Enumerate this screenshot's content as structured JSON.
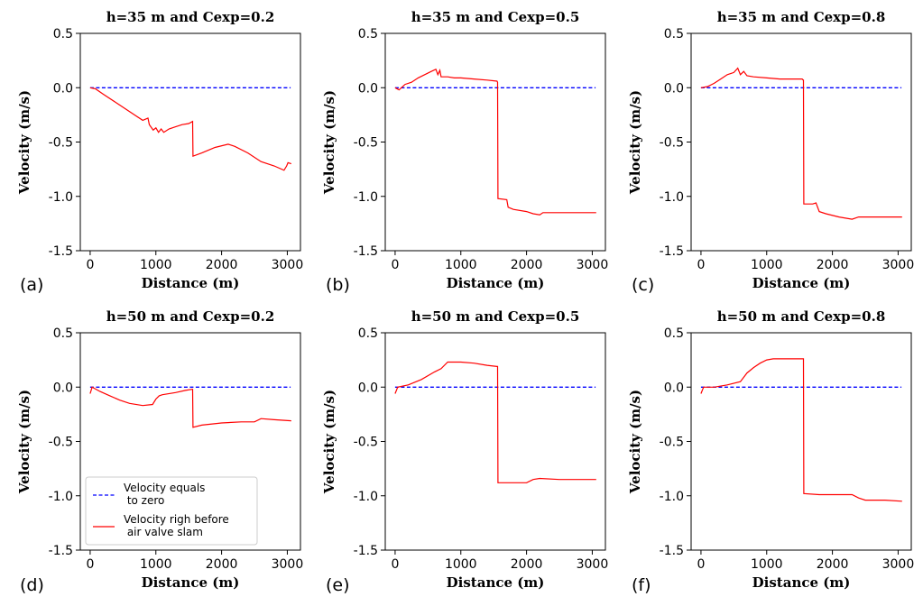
{
  "chart_data": [
    {
      "panel_label": "(a)",
      "type": "line",
      "title": "h=35 m and Cexp=0.2",
      "xlabel": "Distance (m)",
      "ylabel": "Velocity (m/s)",
      "xlim": [
        -150,
        3200
      ],
      "ylim": [
        -1.5,
        0.5
      ],
      "xticks": [
        "0",
        "1000",
        "2000",
        "3000"
      ],
      "yticks": [
        "0.5",
        "0.0",
        "-0.5",
        "-1.0",
        "-1.5"
      ],
      "series": [
        {
          "color": "#0000ff",
          "style": "dashed",
          "x": [
            0,
            3050
          ],
          "y": [
            0,
            0
          ]
        },
        {
          "color": "#ff0000",
          "style": "solid",
          "x": [
            0,
            80,
            200,
            400,
            600,
            800,
            880,
            900,
            960,
            1000,
            1040,
            1080,
            1120,
            1200,
            1300,
            1400,
            1500,
            1560,
            1565,
            1700,
            1900,
            2100,
            2200,
            2400,
            2600,
            2800,
            2950,
            2990,
            3010,
            3060
          ],
          "y": [
            0,
            -0.01,
            -0.06,
            -0.14,
            -0.22,
            -0.3,
            -0.28,
            -0.34,
            -0.39,
            -0.37,
            -0.41,
            -0.38,
            -0.41,
            -0.38,
            -0.36,
            -0.34,
            -0.33,
            -0.31,
            -0.63,
            -0.6,
            -0.55,
            -0.52,
            -0.54,
            -0.6,
            -0.68,
            -0.72,
            -0.76,
            -0.72,
            -0.69,
            -0.7
          ]
        }
      ]
    },
    {
      "panel_label": "(b)",
      "type": "line",
      "title": "h=35 m and Cexp=0.5",
      "xlabel": "Distance (m)",
      "ylabel": "Velocity (m/s)",
      "xlim": [
        -150,
        3200
      ],
      "ylim": [
        -1.5,
        0.5
      ],
      "xticks": [
        "0",
        "1000",
        "2000",
        "3000"
      ],
      "yticks": [
        "0.5",
        "0.0",
        "-0.5",
        "-1.0",
        "-1.5"
      ],
      "series": [
        {
          "color": "#0000ff",
          "style": "dashed",
          "x": [
            0,
            3050
          ],
          "y": [
            0,
            0
          ]
        },
        {
          "color": "#ff0000",
          "style": "solid",
          "x": [
            0,
            60,
            150,
            250,
            350,
            450,
            550,
            620,
            650,
            680,
            700,
            800,
            900,
            1000,
            1200,
            1400,
            1550,
            1560,
            1565,
            1700,
            1720,
            1800,
            2000,
            2100,
            2200,
            2250,
            2400,
            2600,
            2800,
            3000,
            3060
          ],
          "y": [
            0,
            -0.02,
            0.03,
            0.05,
            0.09,
            0.12,
            0.15,
            0.17,
            0.12,
            0.16,
            0.1,
            0.1,
            0.09,
            0.09,
            0.08,
            0.07,
            0.06,
            0.05,
            -1.02,
            -1.03,
            -1.1,
            -1.12,
            -1.14,
            -1.16,
            -1.17,
            -1.15,
            -1.15,
            -1.15,
            -1.15,
            -1.15,
            -1.15
          ]
        }
      ]
    },
    {
      "panel_label": "(c)",
      "type": "line",
      "title": "h=35 m and Cexp=0.8",
      "xlabel": "Distance (m)",
      "ylabel": "Velocity (m/s)",
      "xlim": [
        -150,
        3200
      ],
      "ylim": [
        -1.5,
        0.5
      ],
      "xticks": [
        "0",
        "1000",
        "2000",
        "3000"
      ],
      "yticks": [
        "0.5",
        "0.0",
        "-0.5",
        "-1.0",
        "-1.5"
      ],
      "series": [
        {
          "color": "#0000ff",
          "style": "dashed",
          "x": [
            0,
            3050
          ],
          "y": [
            0,
            0
          ]
        },
        {
          "color": "#ff0000",
          "style": "solid",
          "x": [
            0,
            100,
            200,
            300,
            400,
            500,
            560,
            600,
            650,
            700,
            800,
            1000,
            1200,
            1400,
            1540,
            1555,
            1560,
            1565,
            1700,
            1750,
            1800,
            1900,
            2100,
            2300,
            2350,
            2400,
            2600,
            2800,
            3060
          ],
          "y": [
            0,
            0.01,
            0.04,
            0.08,
            0.12,
            0.14,
            0.18,
            0.12,
            0.15,
            0.11,
            0.1,
            0.09,
            0.08,
            0.08,
            0.08,
            0.07,
            0.07,
            -1.07,
            -1.07,
            -1.06,
            -1.14,
            -1.16,
            -1.19,
            -1.21,
            -1.2,
            -1.19,
            -1.19,
            -1.19,
            -1.19
          ]
        }
      ]
    },
    {
      "panel_label": "(d)",
      "type": "line",
      "title": "h=50 m and Cexp=0.2",
      "xlabel": "Distance (m)",
      "ylabel": "Velocity (m/s)",
      "xlim": [
        -150,
        3200
      ],
      "ylim": [
        -1.5,
        0.5
      ],
      "xticks": [
        "0",
        "1000",
        "2000",
        "3000"
      ],
      "yticks": [
        "0.5",
        "0.0",
        "-0.5",
        "-1.0",
        "-1.5"
      ],
      "series": [
        {
          "color": "#0000ff",
          "style": "dashed",
          "x": [
            0,
            3050
          ],
          "y": [
            0,
            0
          ]
        },
        {
          "color": "#ff0000",
          "style": "solid",
          "x": [
            0,
            30,
            60,
            150,
            300,
            450,
            600,
            800,
            950,
            1000,
            1050,
            1100,
            1300,
            1450,
            1550,
            1560,
            1565,
            1700,
            2000,
            2300,
            2500,
            2600,
            2800,
            3060
          ],
          "y": [
            -0.06,
            0.0,
            -0.01,
            -0.04,
            -0.08,
            -0.12,
            -0.15,
            -0.17,
            -0.16,
            -0.11,
            -0.08,
            -0.07,
            -0.05,
            -0.03,
            -0.02,
            -0.02,
            -0.37,
            -0.35,
            -0.33,
            -0.32,
            -0.32,
            -0.29,
            -0.3,
            -0.31
          ]
        }
      ]
    },
    {
      "panel_label": "(e)",
      "type": "line",
      "title": "h=50 m and Cexp=0.5",
      "xlabel": "Distance (m)",
      "ylabel": "Velocity (m/s)",
      "xlim": [
        -150,
        3200
      ],
      "ylim": [
        -1.5,
        0.5
      ],
      "xticks": [
        "0",
        "1000",
        "2000",
        "3000"
      ],
      "yticks": [
        "0.5",
        "0.0",
        "-0.5",
        "-1.0",
        "-1.5"
      ],
      "series": [
        {
          "color": "#0000ff",
          "style": "dashed",
          "x": [
            0,
            3050
          ],
          "y": [
            0,
            0
          ]
        },
        {
          "color": "#ff0000",
          "style": "solid",
          "x": [
            0,
            40,
            200,
            400,
            600,
            700,
            800,
            1000,
            1200,
            1400,
            1550,
            1560,
            1565,
            1700,
            2000,
            2100,
            2200,
            2500,
            2800,
            3060
          ],
          "y": [
            -0.06,
            0.0,
            0.02,
            0.07,
            0.14,
            0.17,
            0.23,
            0.23,
            0.22,
            0.2,
            0.19,
            0.19,
            -0.88,
            -0.88,
            -0.88,
            -0.85,
            -0.84,
            -0.85,
            -0.85,
            -0.85
          ]
        }
      ]
    },
    {
      "panel_label": "(f)",
      "type": "line",
      "title": "h=50 m and Cexp=0.8",
      "xlabel": "Distance (m)",
      "ylabel": "Velocity (m/s)",
      "xlim": [
        -150,
        3200
      ],
      "ylim": [
        -1.5,
        0.5
      ],
      "xticks": [
        "0",
        "1000",
        "2000",
        "3000"
      ],
      "yticks": [
        "0.5",
        "0.0",
        "-0.5",
        "-1.0",
        "-1.5"
      ],
      "series": [
        {
          "color": "#0000ff",
          "style": "dashed",
          "x": [
            0,
            3050
          ],
          "y": [
            0,
            0
          ]
        },
        {
          "color": "#ff0000",
          "style": "solid",
          "x": [
            0,
            40,
            200,
            400,
            600,
            700,
            800,
            900,
            1000,
            1100,
            1200,
            1400,
            1550,
            1560,
            1565,
            1800,
            2000,
            2300,
            2400,
            2500,
            2800,
            3060
          ],
          "y": [
            -0.06,
            0.0,
            0.0,
            0.02,
            0.05,
            0.13,
            0.18,
            0.22,
            0.25,
            0.26,
            0.26,
            0.26,
            0.26,
            0.26,
            -0.98,
            -0.99,
            -0.99,
            -0.99,
            -1.02,
            -1.04,
            -1.04,
            -1.05
          ]
        }
      ]
    }
  ],
  "legend": {
    "panel_index": 3,
    "placement": "lower-left",
    "entries": [
      {
        "label_line1": "Velocity equals",
        "label_line2": " to zero",
        "color": "#0000ff",
        "style": "dashed"
      },
      {
        "label_line1": "Velocity righ before",
        "label_line2": " air valve slam",
        "color": "#ff0000",
        "style": "solid"
      }
    ]
  }
}
